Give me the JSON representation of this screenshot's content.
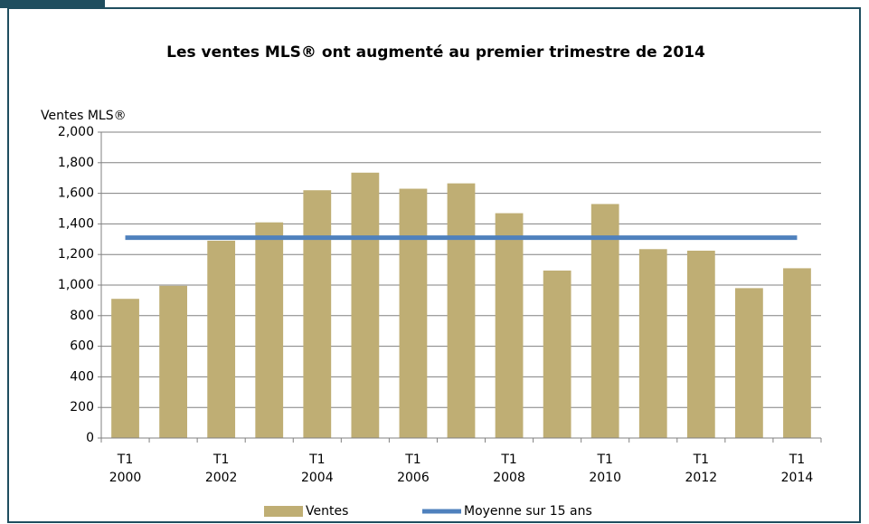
{
  "chart_data": {
    "type": "bar",
    "title": "Les ventes MLS® ont augmenté au premier trimestre de 2014",
    "y_label": "Ventes MLS®",
    "categories": [
      "T1 2000",
      null,
      "T1 2002",
      null,
      "T1 2004",
      null,
      "T1 2006",
      null,
      "T1 2008",
      null,
      "T1 2010",
      null,
      "T1 2012",
      null,
      "T1 2014"
    ],
    "series": [
      {
        "name": "Ventes",
        "type": "bar",
        "color": "#bfae74",
        "values": [
          910,
          995,
          1290,
          1410,
          1620,
          1735,
          1630,
          1665,
          1470,
          1095,
          1530,
          1235,
          1225,
          980,
          1110
        ]
      },
      {
        "name": "Moyenne sur 15 ans",
        "type": "line",
        "color": "#4f81bd",
        "values": [
          1310,
          1310,
          1310,
          1310,
          1310,
          1310,
          1310,
          1310,
          1310,
          1310,
          1310,
          1310,
          1310,
          1310,
          1310
        ]
      }
    ],
    "ylim": [
      0,
      2000
    ],
    "yticks": [
      0,
      200,
      400,
      600,
      800,
      {
        "value": 1000,
        "label": "1,000"
      },
      {
        "value": 1200,
        "label": "1,200"
      },
      {
        "value": 1400,
        "label": "1,400"
      },
      {
        "value": 1600,
        "label": "1,600"
      },
      {
        "value": 1800,
        "label": "1,800"
      },
      {
        "value": 2000,
        "label": "2,000"
      }
    ],
    "grid": true,
    "legend": "bottom"
  }
}
